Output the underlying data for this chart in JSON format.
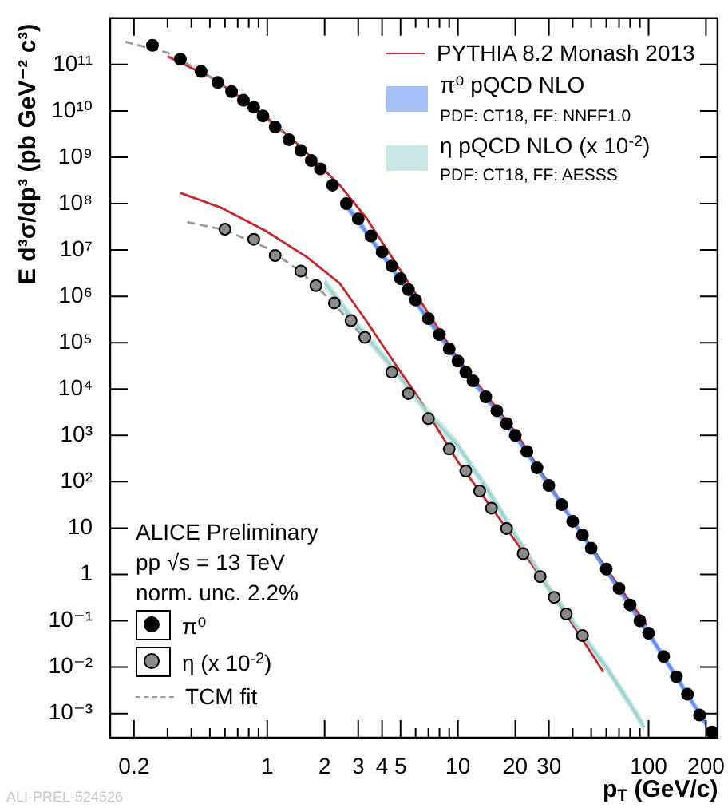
{
  "chart_data": {
    "type": "scatter",
    "xlabel": "p$_{T}$ (GeV/c)",
    "ylabel": "E d³σ/dp³ (pb GeV⁻² c³)",
    "log": "xy",
    "xlim": [
      0.15,
      230
    ],
    "ylim": [
      0.0003,
      1000000000000.0
    ],
    "xticks": [
      {
        "value": 0.2,
        "label": "0.2"
      },
      {
        "value": 0.3,
        "label": null
      },
      {
        "value": 0.4,
        "label": null
      },
      {
        "value": 0.5,
        "label": null
      },
      {
        "value": 0.6,
        "label": null
      },
      {
        "value": 0.7,
        "label": null
      },
      {
        "value": 0.8,
        "label": null
      },
      {
        "value": 0.9,
        "label": null
      },
      1,
      2,
      3,
      4,
      5,
      {
        "value": 6,
        "label": null
      },
      {
        "value": 7,
        "label": null
      },
      {
        "value": 8,
        "label": null
      },
      {
        "value": 9,
        "label": null
      },
      10,
      20,
      30,
      {
        "value": 40,
        "label": null
      },
      {
        "value": 50,
        "label": null
      },
      {
        "value": 60,
        "label": null
      },
      {
        "value": 70,
        "label": null
      },
      {
        "value": 80,
        "label": null
      },
      {
        "value": 90,
        "label": null
      },
      100,
      200
    ],
    "yticks": [
      {
        "value": 0.001,
        "label": "10⁻³"
      },
      {
        "value": 0.01,
        "label": "10⁻²"
      },
      {
        "value": 0.1,
        "label": "10⁻¹"
      },
      1,
      10,
      {
        "value": 100,
        "label": "10²"
      },
      {
        "value": 1000,
        "label": "10³"
      },
      {
        "value": 10000,
        "label": "10⁴"
      },
      {
        "value": 100000,
        "label": "10⁵"
      },
      {
        "value": 1000000,
        "label": "10⁶"
      },
      {
        "value": 10000000,
        "label": "10⁷"
      },
      {
        "value": 100000000,
        "label": "10⁸"
      },
      {
        "value": 1000000000,
        "label": "10⁹"
      },
      {
        "value": 10000000000,
        "label": "10¹⁰"
      },
      {
        "value": 100000000000,
        "label": "10¹¹"
      }
    ],
    "grid": false,
    "legend": "top right",
    "annotations": [
      "ALICE Preliminary",
      "pp √s = 13 TeV",
      "norm. unc. 2.2%",
      "ALI-PREL-524526"
    ],
    "series": [
      {
        "type": "line",
        "name": "PYTHIA 8.2 Monash 2013",
        "color": "#c8262b",
        "x": [
          0.3,
          0.51,
          0.86,
          1.43,
          2.4,
          3.3,
          10,
          20,
          40,
          98
        ],
        "values": [
          150000000000.0,
          52000000000.0,
          12000000000.0,
          2000000000.0,
          250000000.0,
          50000000.0,
          45000.0,
          1200,
          14,
          0.08
        ]
      },
      {
        "type": "line",
        "color": "#c8262b",
        "x": [
          0.35,
          0.58,
          0.98,
          1.6,
          2.4,
          3.3,
          4.8,
          6,
          10,
          17.4,
          32.7,
          58
        ],
        "values": [
          170000000.0,
          80000000.0,
          26000000.0,
          7200000.0,
          1900000.0,
          300000.0,
          30000.0,
          8000,
          270,
          12,
          0.3,
          0.0078
        ]
      },
      {
        "type": "line",
        "name": "π⁰ pQCD NLO\nPDF: CT18, FF: NNFF1.0",
        "color": "#5b8ef2",
        "x": [
          2.5,
          3,
          5,
          10,
          20,
          50,
          100,
          200
        ],
        "values": [
          110000000.0,
          42000000.0,
          2200000.0,
          40000.0,
          1000,
          3.7,
          0.054,
          0.0006
        ],
        "lower": [
          88000000.0,
          34000000.0,
          1800000.0,
          32000.0,
          800,
          3,
          0.043,
          0.00048
        ],
        "upper": [
          140000000.0,
          53000000.0,
          2800000.0,
          50000.0,
          1250,
          4.6,
          0.068,
          0.00075
        ]
      },
      {
        "type": "line",
        "name": "η pQCD NLO (x 10$^{-2}$)\nPDF: CT18, FF: AESSS",
        "color": "#9dd3d0",
        "x": [
          2,
          3,
          5,
          7,
          10,
          15,
          20,
          30,
          40,
          60,
          80,
          95
        ],
        "values": [
          2000000.0,
          220000.0,
          18000.0,
          3000,
          600,
          50,
          7,
          0.5,
          0.095,
          0.01,
          0.0016,
          0.0005
        ],
        "lower": [
          1500000.0,
          170000.0,
          14000.0,
          2300,
          460,
          38,
          5.4,
          0.38,
          0.073,
          0.0077,
          0.0012,
          0.00038
        ],
        "upper": [
          2600000.0,
          290000.0,
          23000.0,
          3900,
          780,
          65,
          9.1,
          0.65,
          0.12,
          0.013,
          0.0021,
          0.00065
        ]
      },
      {
        "name": "π⁰",
        "marker": "circle",
        "color": "#000000",
        "x": [
          0.25,
          0.35,
          0.45,
          0.55,
          0.65,
          0.75,
          0.85,
          0.95,
          1.1,
          1.3,
          1.5,
          1.7,
          1.9,
          2.2,
          2.6,
          3,
          3.5,
          4,
          4.5,
          5,
          5.5,
          6,
          7,
          8,
          9,
          10,
          11,
          12,
          14,
          16,
          18,
          20,
          23,
          26,
          30,
          35,
          40,
          45,
          50,
          60,
          70,
          80,
          90,
          100,
          120,
          140,
          160,
          185,
          215
        ],
        "values": [
          260000000000.0,
          130000000000.0,
          71000000000.0,
          41000000000.0,
          26000000000.0,
          17000000000.0,
          12000000000.0,
          7800000000.0,
          4500000000.0,
          2400000000.0,
          1400000000.0,
          850000000.0,
          560000000.0,
          250000000.0,
          100000000.0,
          47000000.0,
          20000000.0,
          9100000.0,
          4500000.0,
          2400000.0,
          1400000.0,
          830000.0,
          330000.0,
          150000.0,
          74000.0,
          40000.0,
          23000.0,
          15000.0,
          6800,
          3400,
          1800,
          1000,
          450,
          200,
          83,
          32,
          14,
          7.1,
          3.7,
          1.3,
          0.5,
          0.22,
          0.1,
          0.054,
          0.017,
          0.0062,
          0.0026,
          0.00093,
          0.0004
        ]
      },
      {
        "name": "η (x 10$^{-2}$)",
        "marker": "circle",
        "color": "#8a8a8a",
        "x": [
          0.6,
          0.85,
          1.1,
          1.5,
          1.8,
          2.25,
          2.75,
          3.25,
          4.5,
          5.5,
          7,
          9,
          11,
          13,
          15,
          18,
          22,
          27,
          32,
          37,
          45
        ],
        "values": [
          28000000.0,
          17000000.0,
          7600000.0,
          3500000.0,
          1700000.0,
          720000.0,
          300000.0,
          130000.0,
          23000.0,
          8000,
          2300,
          510,
          170,
          63,
          27,
          9.8,
          2.8,
          0.9,
          0.32,
          0.14,
          0.048
        ]
      },
      {
        "type": "line",
        "name": "TCM fit",
        "line_style": "dashed",
        "color": "#999999",
        "x": [
          0.18,
          0.3,
          0.5,
          0.8,
          1.2
        ],
        "values": [
          310000000000.0,
          180000000000.0,
          55000000000.0,
          14000000000.0,
          3500000000.0
        ]
      },
      {
        "type": "line",
        "line_style": "dashed",
        "color": "#999999",
        "x": [
          0.38,
          0.6,
          1,
          1.5,
          2.2,
          3.2
        ],
        "values": [
          40000000.0,
          27000000.0,
          11000000.0,
          3400000.0,
          750000.0,
          130000.0
        ]
      }
    ]
  }
}
